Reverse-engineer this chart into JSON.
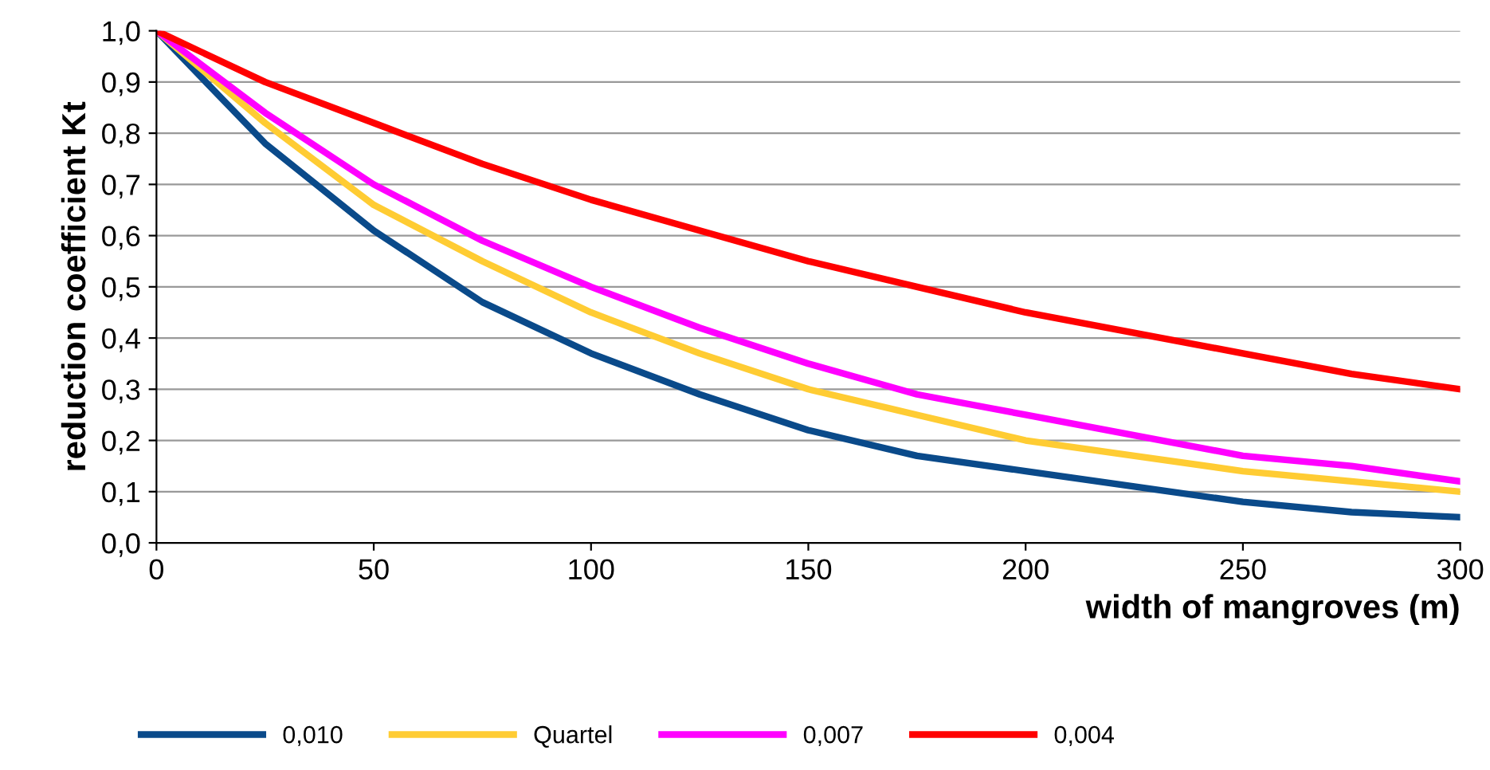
{
  "chart_data": {
    "type": "line",
    "xlabel": "width of mangroves (m)",
    "ylabel": "reduction coefficient Kt",
    "x": [
      0,
      25,
      50,
      75,
      100,
      125,
      150,
      175,
      200,
      225,
      250,
      275,
      300
    ],
    "series": [
      {
        "name": "0,010",
        "color": "#0a4a8a",
        "values": [
          1.0,
          0.78,
          0.61,
          0.47,
          0.37,
          0.29,
          0.22,
          0.17,
          0.14,
          0.11,
          0.08,
          0.06,
          0.05
        ]
      },
      {
        "name": "Quartel",
        "color": "#ffcc33",
        "values": [
          1.0,
          0.82,
          0.66,
          0.55,
          0.45,
          0.37,
          0.3,
          0.25,
          0.2,
          0.17,
          0.14,
          0.12,
          0.1
        ]
      },
      {
        "name": "0,007",
        "color": "#ff00ff",
        "values": [
          1.0,
          0.84,
          0.7,
          0.59,
          0.5,
          0.42,
          0.35,
          0.29,
          0.25,
          0.21,
          0.17,
          0.15,
          0.12
        ]
      },
      {
        "name": "0,004",
        "color": "#ff0000",
        "values": [
          1.0,
          0.9,
          0.82,
          0.74,
          0.67,
          0.61,
          0.55,
          0.5,
          0.45,
          0.41,
          0.37,
          0.33,
          0.3
        ]
      }
    ],
    "xlim": [
      0,
      300
    ],
    "xticks": [
      0,
      50,
      100,
      150,
      200,
      250,
      300
    ],
    "ylim": [
      0,
      1
    ],
    "yticks": [
      {
        "value": 0,
        "label": "0,0"
      },
      {
        "value": 0.1,
        "label": "0,1"
      },
      {
        "value": 0.2,
        "label": "0,2"
      },
      {
        "value": 0.3,
        "label": "0,3"
      },
      {
        "value": 0.4,
        "label": "0,4"
      },
      {
        "value": 0.5,
        "label": "0,5"
      },
      {
        "value": 0.6,
        "label": "0,6"
      },
      {
        "value": 0.7,
        "label": "0,7"
      },
      {
        "value": 0.8,
        "label": "0,8"
      },
      {
        "value": 0.9,
        "label": "0,9"
      },
      {
        "value": 1.0,
        "label": "1,0"
      }
    ],
    "grid": "y",
    "legend": "bottom",
    "marker": "none",
    "line_style": "solid"
  }
}
